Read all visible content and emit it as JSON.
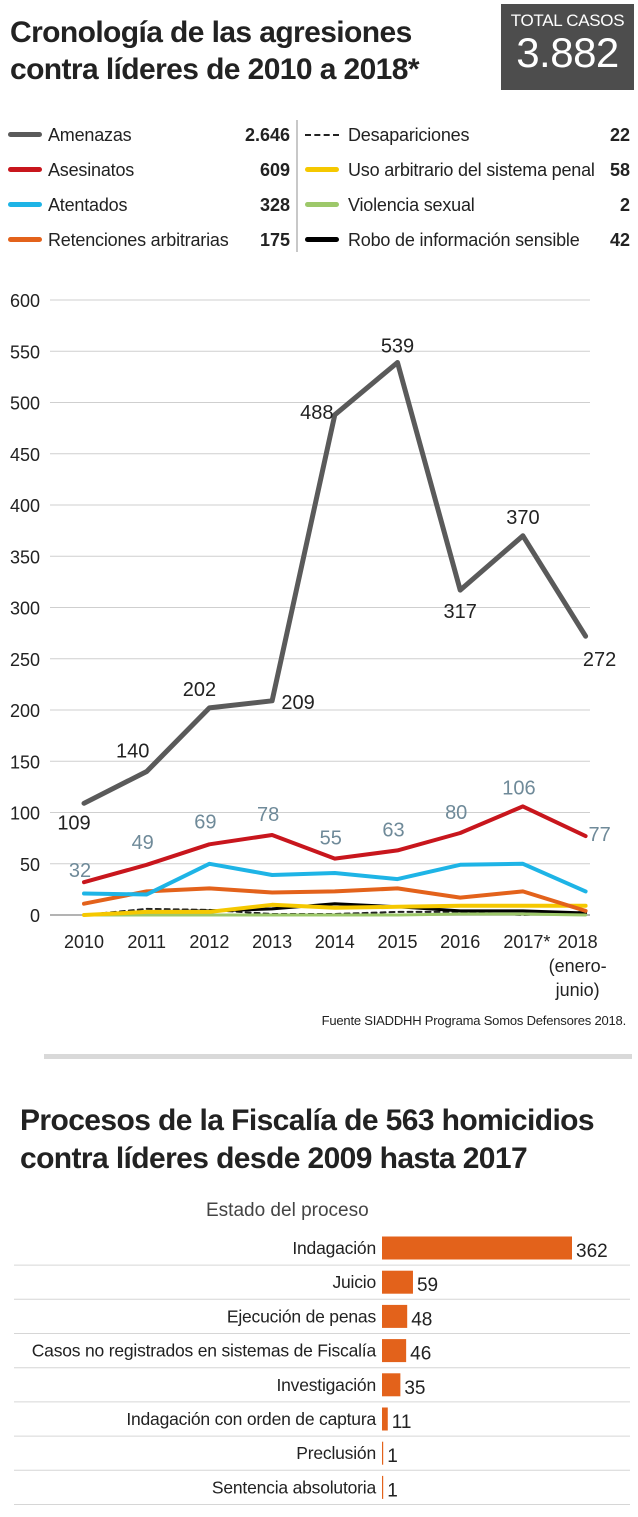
{
  "header": {
    "title": "Cronología de las agresiones contra líderes de 2010 a 2018*",
    "total_label": "TOTAL CASOS",
    "total_value": "3.882"
  },
  "legend": {
    "items": [
      {
        "label": "Amenazas",
        "value": "2.646",
        "color": "#5a5a5a",
        "style": "solid"
      },
      {
        "label": "Asesinatos",
        "value": "609",
        "color": "#c8161d",
        "style": "solid"
      },
      {
        "label": "Atentados",
        "value": "328",
        "color": "#1eb4e6",
        "style": "solid"
      },
      {
        "label": "Retenciones arbitrarias",
        "value": "175",
        "color": "#e3621b",
        "style": "solid"
      },
      {
        "label": "Desapariciones",
        "value": "22",
        "color": "#222222",
        "style": "dashed"
      },
      {
        "label": "Uso arbitrario del sistema penal",
        "value": "58",
        "color": "#f5c800",
        "style": "solid"
      },
      {
        "label": "Violencia sexual",
        "value": "2",
        "color": "#9dc86a",
        "style": "solid"
      },
      {
        "label": "Robo de información sensible",
        "value": "42",
        "color": "#000000",
        "style": "solid"
      }
    ]
  },
  "chart_data": [
    {
      "type": "line",
      "title": "Cronología de las agresiones contra líderes de 2010 a 2018*",
      "categories": [
        "2010",
        "2011",
        "2012",
        "2013",
        "2014",
        "2015",
        "2016",
        "2017*",
        "2018 (enero-junio)"
      ],
      "y_ticks": [
        "0",
        "50",
        "100",
        "150",
        "200",
        "250",
        "300",
        "350",
        "400",
        "450",
        "500",
        "550",
        "600"
      ],
      "ylim": [
        0,
        600
      ],
      "grid": true,
      "series": [
        {
          "name": "Amenazas",
          "color": "#5a5a5a",
          "width": 5,
          "values": [
            109,
            140,
            202,
            209,
            488,
            539,
            317,
            370,
            272
          ],
          "labels": [
            "109",
            "140",
            "202",
            "209",
            "488",
            "539",
            "317",
            "370",
            "272"
          ],
          "label_color": "#222222"
        },
        {
          "name": "Asesinatos",
          "color": "#c8161d",
          "width": 4,
          "values": [
            32,
            49,
            69,
            78,
            55,
            63,
            80,
            106,
            77
          ],
          "labels": [
            "32",
            "49",
            "69",
            "78",
            "55",
            "63",
            "80",
            "106",
            "77"
          ],
          "label_color": "#6f8a99"
        },
        {
          "name": "Atentados",
          "color": "#1eb4e6",
          "width": 4,
          "values": [
            21,
            20,
            50,
            39,
            41,
            35,
            49,
            50,
            23
          ]
        },
        {
          "name": "Retenciones arbitrarias",
          "color": "#e3621b",
          "width": 4,
          "values": [
            11,
            23,
            26,
            22,
            23,
            26,
            17,
            23,
            4
          ]
        },
        {
          "name": "Uso arbitrario del sistema penal",
          "color": "#f5c800",
          "width": 4,
          "values": [
            0,
            3,
            3,
            10,
            7,
            8,
            9,
            9,
            9
          ]
        },
        {
          "name": "Violencia sexual",
          "color": "#9dc86a",
          "width": 3,
          "values": [
            0,
            0,
            0,
            0,
            0,
            0,
            1,
            1,
            0
          ]
        },
        {
          "name": "Robo de información sensible",
          "color": "#000000",
          "width": 3,
          "values": [
            0,
            3,
            4,
            6,
            11,
            8,
            4,
            4,
            2
          ]
        },
        {
          "name": "Desapariciones",
          "color": "#222222",
          "width": 2,
          "dashed": true,
          "values": [
            0,
            6,
            5,
            1,
            1,
            3,
            3,
            0,
            3
          ]
        }
      ]
    },
    {
      "type": "bar",
      "orientation": "horizontal",
      "title": "Procesos de la Fiscalía de 563 homicidios contra líderes desde 2009 hasta 2017",
      "ylabel": "Estado del proceso",
      "color": "#e3621b",
      "categories": [
        "Indagación",
        "Juicio",
        "Ejecución de penas",
        "Casos no registrados en sistemas de Fiscalía",
        "Investigación",
        "Indagación con orden de captura",
        "Preclusión",
        "Sentencia absolutoria"
      ],
      "values": [
        362,
        59,
        48,
        46,
        35,
        11,
        1,
        1
      ]
    }
  ],
  "source": "Fuente SIADDHH Programa Somos Defensores 2018.",
  "section2": {
    "title": "Procesos de la Fiscalía de 563 homicidios contra líderes desde 2009 hasta 2017",
    "caption": "Estado del proceso"
  }
}
